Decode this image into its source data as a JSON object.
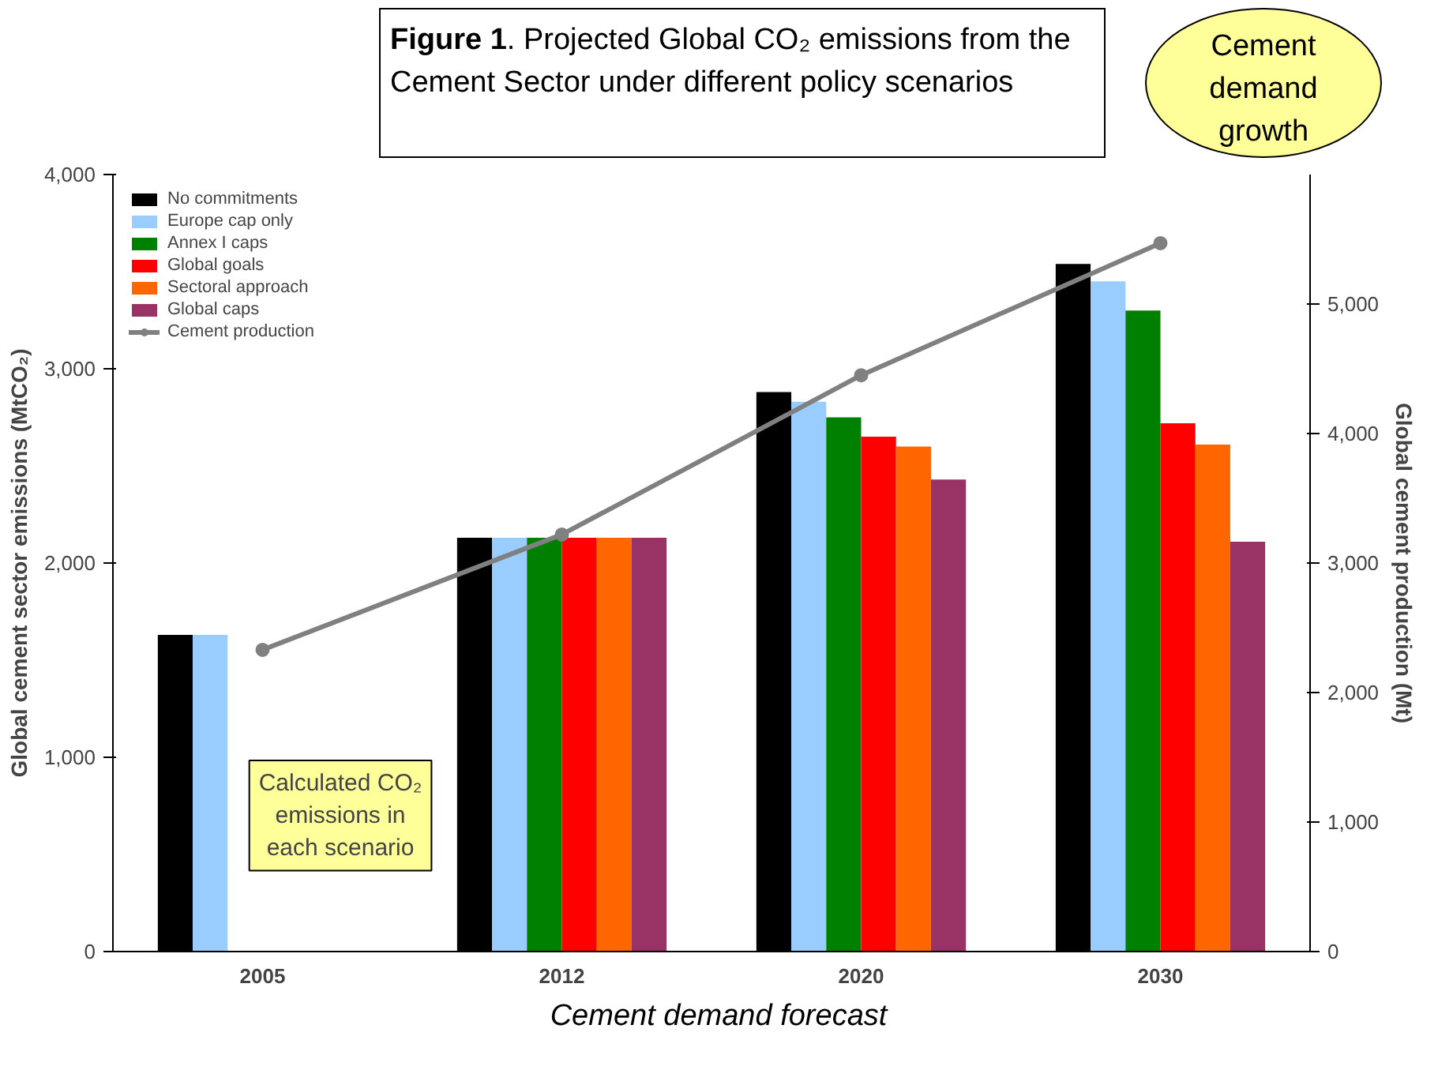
{
  "chart_data": {
    "type": "bar",
    "title": "Figure 1. Projected Global CO₂ emissions from the Cement Sector under different policy scenarios",
    "categories": [
      "2005",
      "2012",
      "2020",
      "2030"
    ],
    "ylabel": "Global cement sector emissions (MtCO₂)",
    "y2label": "Global cement production (Mt)",
    "ylim": [
      0,
      4000
    ],
    "yticks": [
      0,
      {
        "value": 1000,
        "label": "1,000"
      },
      {
        "value": 2000,
        "label": "2,000"
      },
      {
        "value": 3000,
        "label": "3,000"
      },
      {
        "value": 4000,
        "label": "4,000"
      }
    ],
    "y2lim": [
      0,
      6000
    ],
    "y2ticks": [
      0,
      {
        "value": 1000,
        "label": "1,000"
      },
      {
        "value": 2000,
        "label": "2,000"
      },
      {
        "value": 3000,
        "label": "3,000"
      },
      {
        "value": 4000,
        "label": "4,000"
      },
      {
        "value": 5000,
        "label": "5,000"
      }
    ],
    "series": [
      {
        "name": "No commitments",
        "color": "#000000",
        "values": [
          1630,
          2130,
          2880,
          3540
        ]
      },
      {
        "name": "Europe cap only",
        "color": "#99ccff",
        "values": [
          1630,
          2130,
          2830,
          3450
        ]
      },
      {
        "name": "Annex I caps",
        "color": "#008000",
        "values": [
          null,
          2130,
          2750,
          3300
        ]
      },
      {
        "name": "Global goals",
        "color": "#ff0000",
        "values": [
          null,
          2130,
          2650,
          2720
        ]
      },
      {
        "name": "Sectoral approach",
        "color": "#ff6600",
        "values": [
          null,
          2130,
          2600,
          2610
        ]
      },
      {
        "name": "Global caps",
        "color": "#993366",
        "values": [
          null,
          2130,
          2430,
          2110
        ]
      },
      {
        "name": "Cement production",
        "type": "line",
        "axis": "y2",
        "color": "#808080",
        "values": [
          2330,
          3220,
          4450,
          5470
        ]
      }
    ],
    "marker": "circle",
    "legend": "top left",
    "grid": false,
    "annotations": [
      "Cement demand growth",
      "Calculated CO₂ emissions in each scenario",
      "Cement demand forecast"
    ]
  }
}
